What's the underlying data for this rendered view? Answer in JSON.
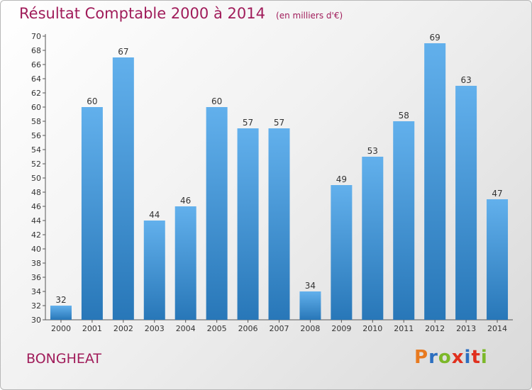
{
  "header": {
    "title": "Résultat Comptable 2000 à 2014",
    "subtitle": "(en milliers d'€)"
  },
  "footer": {
    "commune": "BONGHEAT",
    "brand": "Proxiti"
  },
  "colors": {
    "title": "#a01c5a",
    "bar_top": "#62b0ec",
    "bar_bottom": "#2877b8",
    "brand_letters": [
      "#e87a20",
      "#2c6fc0",
      "#7cb829",
      "#e0301e",
      "#2c6fc0",
      "#e0301e",
      "#7cb829"
    ]
  },
  "chart_data": {
    "type": "bar",
    "title": "Résultat Comptable 2000 à 2014",
    "subtitle": "(en milliers d'€)",
    "xlabel": "",
    "ylabel": "",
    "categories": [
      "2000",
      "2001",
      "2002",
      "2003",
      "2004",
      "2005",
      "2006",
      "2007",
      "2008",
      "2009",
      "2010",
      "2011",
      "2012",
      "2013",
      "2014"
    ],
    "values": [
      32,
      60,
      67,
      44,
      46,
      60,
      57,
      57,
      34,
      49,
      53,
      58,
      69,
      63,
      47
    ],
    "ylim": [
      30,
      70
    ],
    "ytick_step": 2,
    "grid": false,
    "legend": "none",
    "data_labels": true
  }
}
